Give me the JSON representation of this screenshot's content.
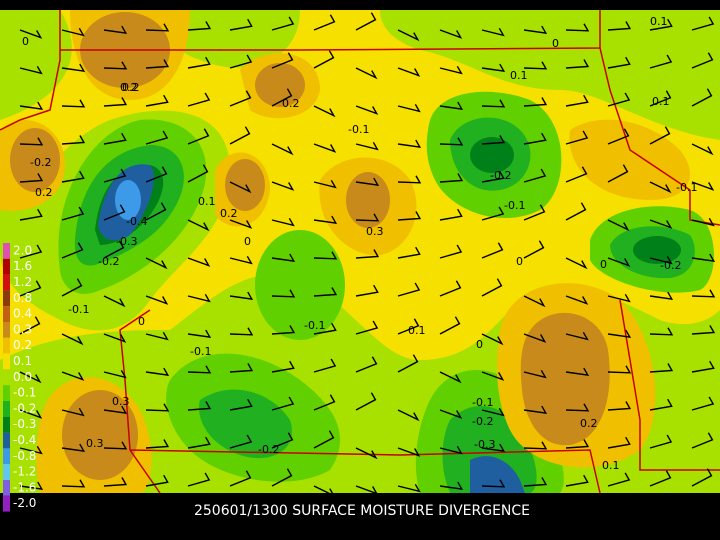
{
  "caption": "250601/1300 SURFACE MOISTURE DIVERGENCE",
  "legend": [
    {
      "label": "2.0",
      "color": "#e050b0"
    },
    {
      "label": "1.6",
      "color": "#b00000"
    },
    {
      "label": "1.2",
      "color": "#d01010"
    },
    {
      "label": "0.8",
      "color": "#8b3a10"
    },
    {
      "label": "0.4",
      "color": "#c06010"
    },
    {
      "label": "0.3",
      "color": "#c88a1a"
    },
    {
      "label": "0.2",
      "color": "#f0c000"
    },
    {
      "label": "0.1",
      "color": "#f6e000"
    },
    {
      "label": "0.0",
      "color": "#a8e000"
    },
    {
      "label": "-0.1",
      "color": "#60d000"
    },
    {
      "label": "-0.2",
      "color": "#20b020"
    },
    {
      "label": "-0.3",
      "color": "#008018"
    },
    {
      "label": "-0.4",
      "color": "#1f5fa0"
    },
    {
      "label": "-0.8",
      "color": "#3c9ae8"
    },
    {
      "label": "-1.2",
      "color": "#60c8f0"
    },
    {
      "label": "-1.6",
      "color": "#8060e0"
    },
    {
      "label": "-2.0",
      "color": "#9020c0"
    }
  ],
  "contour_labels": [
    "0",
    "0.2",
    "0.2",
    "0.1",
    "0",
    "-0.1",
    "0.1",
    "0.2",
    "0.1",
    "0.2",
    "-0.4",
    "-0.3",
    "-0.2",
    "0.1",
    "0.2",
    "0",
    "0.3",
    "-0.2",
    "-0.1",
    "0",
    "0",
    "-0.2",
    "-0.1",
    "-0.1",
    "0",
    "0.1",
    "0",
    "-0.1",
    "0.3",
    "0.3",
    "-0.2",
    "-0.1",
    "-0.2",
    "-0.3",
    "0.2",
    "0.1",
    "-0.1",
    "-0.2"
  ]
}
